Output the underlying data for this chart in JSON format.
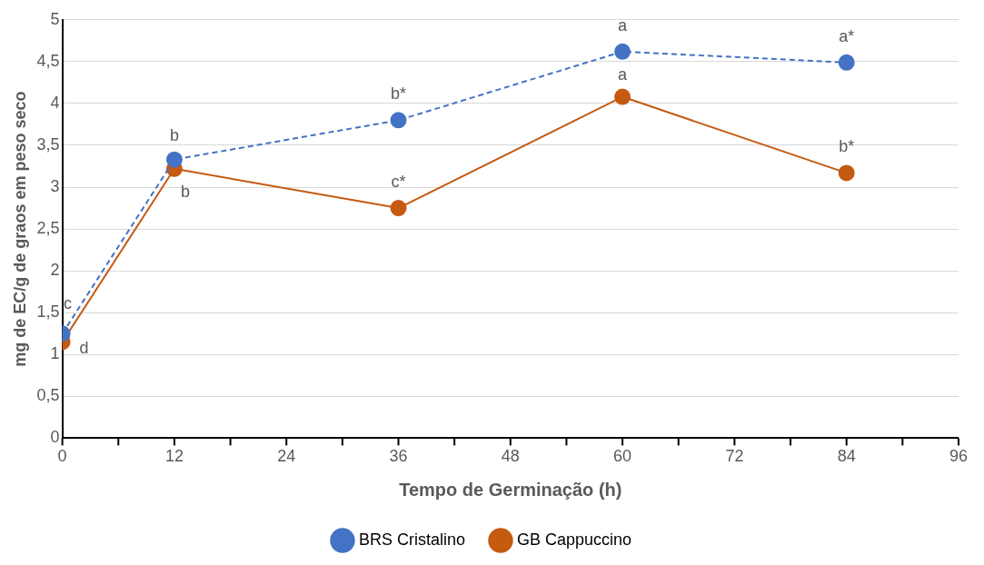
{
  "chart_data": {
    "type": "line",
    "xlabel": "Tempo de Germinação (h)",
    "ylabel": "mg de EC/g de graos em peso seco",
    "x": [
      0,
      12,
      36,
      60,
      84
    ],
    "series": [
      {
        "name": "BRS Cristalino",
        "color": "#4472c4",
        "line_style": "dashed",
        "values": [
          1.25,
          3.33,
          3.8,
          4.62,
          4.49
        ]
      },
      {
        "name": "GB Cappuccino",
        "color": "#c55a11",
        "line_style": "solid",
        "values": [
          1.15,
          3.22,
          2.75,
          4.08,
          3.17
        ]
      }
    ],
    "xlim": [
      0,
      96
    ],
    "xticks": [
      0,
      12,
      24,
      36,
      48,
      60,
      72,
      84,
      96
    ],
    "ylim": [
      0,
      5
    ],
    "yticks": [
      0,
      {
        "value": 0.5,
        "label": "0,5"
      },
      1,
      {
        "value": 1.5,
        "label": "1,5"
      },
      2,
      {
        "value": 2.5,
        "label": "2,5"
      },
      3,
      {
        "value": 3.5,
        "label": "3,5"
      },
      4,
      {
        "value": 4.5,
        "label": "4,5"
      },
      5
    ],
    "grid": "y",
    "legend": "bottom",
    "marker": "circle",
    "annotations": [
      {
        "text": "c",
        "x": 0,
        "y": 1.25
      },
      {
        "text": "d",
        "x": 0,
        "y": 1.15
      },
      {
        "text": "b",
        "x": 12,
        "y": 3.33
      },
      {
        "text": "b",
        "x": 12,
        "y": 3.22
      },
      {
        "text": "b*",
        "x": 36,
        "y": 3.8
      },
      {
        "text": "c*",
        "x": 36,
        "y": 2.75
      },
      {
        "text": "a",
        "x": 60,
        "y": 4.62
      },
      {
        "text": "a",
        "x": 60,
        "y": 4.08
      },
      {
        "text": "a*",
        "x": 84,
        "y": 4.49
      },
      {
        "text": "b*",
        "x": 84,
        "y": 3.17
      }
    ]
  }
}
